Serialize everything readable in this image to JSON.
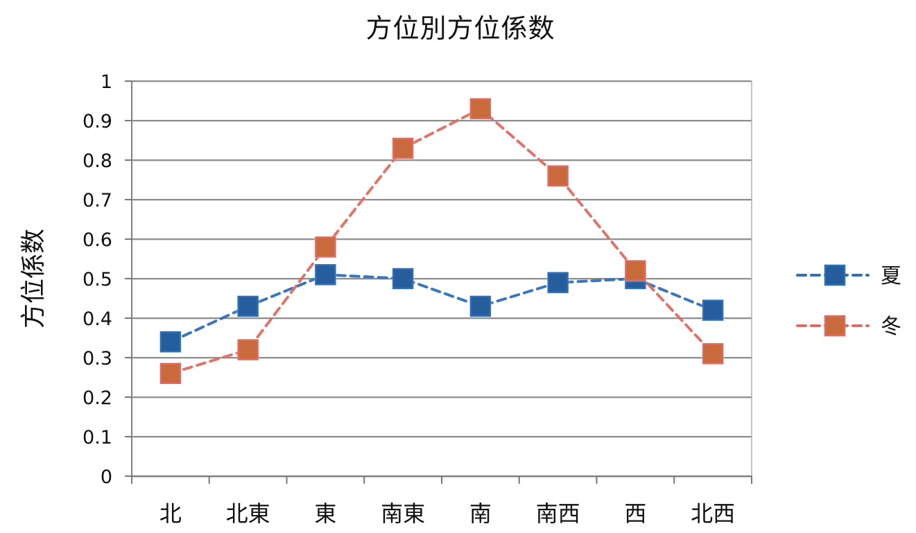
{
  "chart_data": {
    "type": "line",
    "title": "方位別方位係数",
    "xlabel": "",
    "ylabel": "方位係数",
    "categories": [
      "北",
      "北東",
      "東",
      "南東",
      "南",
      "南西",
      "西",
      "北西"
    ],
    "ylim": [
      0,
      1
    ],
    "yticks": [
      0,
      0.1,
      0.2,
      0.3,
      0.4,
      0.5,
      0.6,
      0.7,
      0.8,
      0.9,
      1
    ],
    "ytick_labels": [
      "0",
      "0.1",
      "0.2",
      "0.3",
      "0.4",
      "0.5",
      "0.6",
      "0.7",
      "0.8",
      "0.9",
      "1"
    ],
    "grid": true,
    "legend_position": "right",
    "series": [
      {
        "name": "夏",
        "values": [
          0.34,
          0.43,
          0.51,
          0.5,
          0.43,
          0.49,
          0.5,
          0.42
        ],
        "color": "#2e6fb7",
        "marker_color": "#255d9c"
      },
      {
        "name": "冬",
        "values": [
          0.26,
          0.32,
          0.58,
          0.83,
          0.93,
          0.76,
          0.52,
          0.31
        ],
        "color": "#e06b62",
        "marker_color": "#c96a3d"
      }
    ]
  }
}
